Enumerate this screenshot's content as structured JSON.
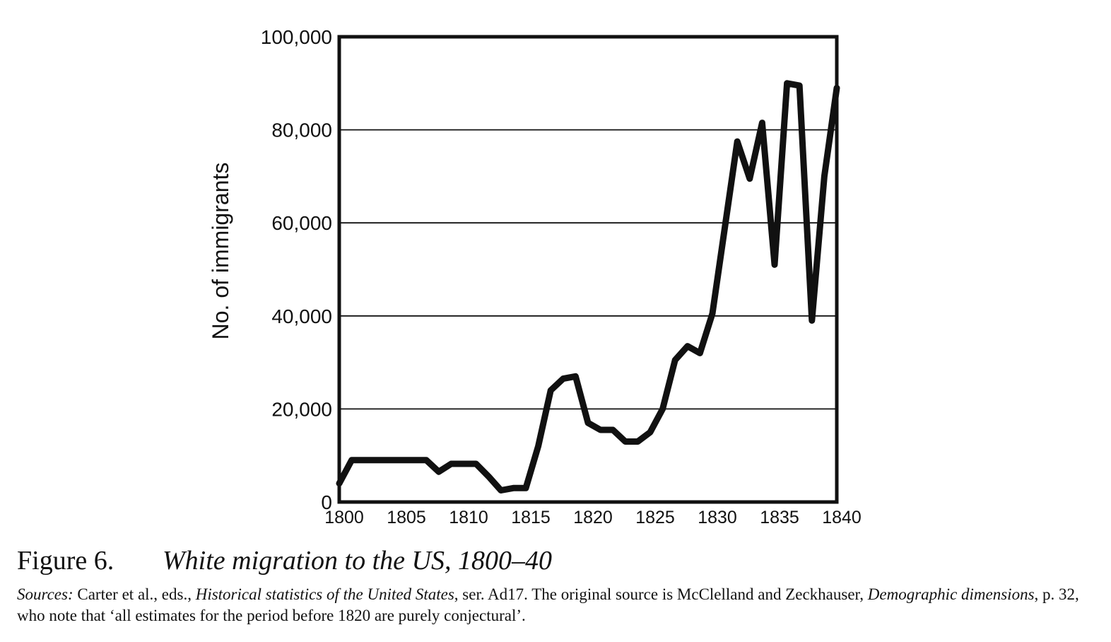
{
  "chart_data": {
    "type": "line",
    "ylabel": "No. of immigrants",
    "xlabel": "",
    "xlim": [
      1800,
      1840
    ],
    "ylim": [
      0,
      100000
    ],
    "x_ticks": [
      1800,
      1805,
      1810,
      1815,
      1820,
      1825,
      1830,
      1835,
      1840
    ],
    "x_tick_labels": [
      "1800",
      "1805",
      "1810",
      "1815",
      "1820",
      "1825",
      "1830",
      "1835",
      "1840"
    ],
    "y_ticks": [
      0,
      20000,
      40000,
      60000,
      80000,
      100000
    ],
    "y_tick_labels": [
      "0",
      "20,000",
      "40,000",
      "60,000",
      "80,000",
      "100,000"
    ],
    "grid": "horizontal",
    "series": [
      {
        "color": "#111111",
        "x": [
          1800,
          1801,
          1802,
          1803,
          1804,
          1805,
          1806,
          1807,
          1808,
          1809,
          1810,
          1811,
          1812,
          1813,
          1814,
          1815,
          1816,
          1817,
          1818,
          1819,
          1820,
          1821,
          1822,
          1823,
          1824,
          1825,
          1826,
          1827,
          1828,
          1829,
          1830,
          1831,
          1832,
          1833,
          1834,
          1835,
          1836,
          1837,
          1838,
          1839,
          1840
        ],
        "y": [
          4000,
          9000,
          9000,
          9000,
          9000,
          9000,
          9000,
          9000,
          6500,
          8200,
          8200,
          8200,
          5500,
          2500,
          3000,
          3000,
          12000,
          24000,
          26500,
          27000,
          17000,
          15500,
          15500,
          13000,
          13000,
          15000,
          20000,
          30500,
          33500,
          32000,
          40500,
          59000,
          77500,
          69500,
          81500,
          51000,
          90000,
          89500,
          39000,
          70000,
          89000
        ]
      }
    ]
  },
  "caption": {
    "figure_number": "Figure 6.",
    "figure_title": "White migration to the US, 1800–40",
    "sources_label": "Sources:",
    "sources_text_1": " Carter et al., eds., ",
    "sources_work_1": "Historical statistics of the United States",
    "sources_text_2": ", ser. Ad17. The original source is McClelland and Zeckhauser, ",
    "sources_work_2": "Demographic dimensions",
    "sources_text_3": ", p. 32, who note that ‘all estimates for the period before 1820 are purely conjectural’."
  }
}
